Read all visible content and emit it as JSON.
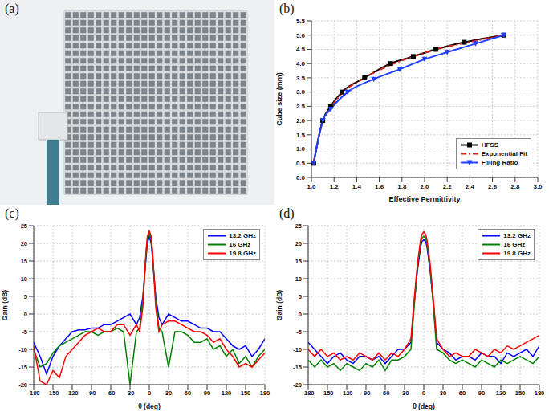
{
  "image_panel": {
    "panel_label": "(a)"
  },
  "chart_data": [
    {
      "panel_label": "(b)",
      "type": "line",
      "x_label": "Effective Permittivity",
      "y_label": "Cube size (mm)",
      "xlim": [
        1,
        3
      ],
      "xticks": [
        {
          "value": 1,
          "label": "1.0"
        },
        1.2,
        1.4,
        1.6,
        1.8,
        {
          "value": 2,
          "label": "2.0"
        },
        2.2,
        2.4,
        2.6,
        2.8,
        {
          "value": 3,
          "label": "3.0"
        }
      ],
      "ylim": [
        0,
        5.5
      ],
      "yticks": [
        {
          "value": 0,
          "label": "0.0"
        },
        0.5,
        {
          "value": 1,
          "label": "1.0"
        },
        1.5,
        {
          "value": 2,
          "label": "2.0"
        },
        2.5,
        {
          "value": 3,
          "label": "3.0"
        },
        3.5,
        {
          "value": 4,
          "label": "4.0"
        },
        4.5,
        {
          "value": 5,
          "label": "5.0"
        },
        5.5
      ],
      "grid": true,
      "legend": "lower right",
      "series": [
        {
          "name": "HFSS",
          "color": "#000000",
          "marker": "square",
          "line_style": "solid",
          "x": [
            1.02,
            1.1,
            1.17,
            1.27,
            1.47,
            1.7,
            1.9,
            2.1,
            2.35,
            2.7
          ],
          "values": [
            0.5,
            2.0,
            2.5,
            3.0,
            3.5,
            4.0,
            4.25,
            4.5,
            4.75,
            5.0
          ]
        },
        {
          "name": "Exponential Fit",
          "color": "#e0201b",
          "marker": "none",
          "line_style": "dashdot",
          "x": [
            1.02,
            1.1,
            1.17,
            1.27,
            1.47,
            1.7,
            1.9,
            2.1,
            2.35,
            2.7
          ],
          "values": [
            0.55,
            1.95,
            2.45,
            2.95,
            3.5,
            3.95,
            4.25,
            4.5,
            4.72,
            5.0
          ]
        },
        {
          "name": "Filling Ratio",
          "color": "#1f3fff",
          "marker": "triangle-down",
          "line_style": "solid",
          "x": [
            1.02,
            1.1,
            1.17,
            1.32,
            1.55,
            1.78,
            2.0,
            2.2,
            2.45,
            2.7
          ],
          "values": [
            0.5,
            2.0,
            2.4,
            3.0,
            3.45,
            3.8,
            4.15,
            4.4,
            4.7,
            5.0
          ]
        }
      ]
    },
    {
      "panel_label": "(c)",
      "type": "line",
      "x_label": "θ (deg)",
      "y_label": "Gain (dB)",
      "xlim": [
        -180,
        180
      ],
      "xticks": [
        -180,
        -150,
        -120,
        -90,
        -60,
        -30,
        0,
        30,
        60,
        90,
        120,
        150,
        180
      ],
      "ylim": [
        -20,
        25
      ],
      "yticks": [
        -20,
        -15,
        -10,
        -5,
        0,
        5,
        10,
        15,
        20,
        25
      ],
      "grid": true,
      "legend": "upper right",
      "x": [
        -180,
        -170,
        -160,
        -150,
        -140,
        -130,
        -120,
        -110,
        -100,
        -90,
        -80,
        -70,
        -60,
        -50,
        -40,
        -30,
        -20,
        -15,
        -10,
        -5,
        -3,
        0,
        3,
        5,
        10,
        15,
        20,
        30,
        40,
        50,
        60,
        70,
        80,
        90,
        100,
        110,
        120,
        130,
        140,
        150,
        160,
        170,
        180
      ],
      "series": [
        {
          "name": "13.2 GHz",
          "color": "#0000ff",
          "values": [
            -8,
            -12,
            -17,
            -12,
            -9,
            -7,
            -5,
            -4.5,
            -4.5,
            -4,
            -4,
            -3,
            -3,
            -2,
            -1,
            0,
            -3,
            -1,
            5,
            16,
            20,
            22,
            20,
            16,
            5,
            -1,
            -3,
            0,
            -1,
            -2,
            -2,
            -3,
            -4,
            -4,
            -5,
            -5,
            -7,
            -9,
            -10,
            -9,
            -12,
            -10,
            -7
          ]
        },
        {
          "name": "16 GHz",
          "color": "#008000",
          "values": [
            -10,
            -15,
            -14,
            -11,
            -9,
            -8,
            -7,
            -6,
            -5,
            -5,
            -6,
            -5,
            -5,
            -4,
            -5,
            -20,
            -5,
            -4,
            4,
            17,
            21,
            23,
            21,
            17,
            4,
            -4,
            -5,
            -15,
            -5,
            -5,
            -6,
            -8,
            -8,
            -7,
            -10,
            -9,
            -12,
            -10,
            -14,
            -12,
            -15,
            -12,
            -10
          ]
        },
        {
          "name": "19.8 GHz",
          "color": "#ff0000",
          "values": [
            -9,
            -19,
            -20,
            -16,
            -18,
            -12,
            -10,
            -8,
            -6,
            -5,
            -4,
            -5,
            -5,
            -3,
            -3,
            -6,
            -3,
            -5,
            2,
            18,
            22,
            23.5,
            22,
            18,
            2,
            -5,
            -3,
            -2,
            -2,
            -3,
            -4,
            -5,
            -5,
            -6,
            -8,
            -7,
            -10,
            -12,
            -15,
            -14,
            -15,
            -13,
            -11
          ]
        }
      ]
    },
    {
      "panel_label": "(d)",
      "type": "line",
      "x_label": "θ (deg)",
      "y_label": "Gain (dB)",
      "xlim": [
        -180,
        180
      ],
      "xticks": [
        -180,
        -150,
        -120,
        -90,
        -60,
        -30,
        0,
        30,
        60,
        90,
        120,
        150,
        180
      ],
      "ylim": [
        -20,
        25
      ],
      "yticks": [
        -20,
        -15,
        -10,
        -5,
        0,
        5,
        10,
        15,
        20,
        25
      ],
      "grid": true,
      "legend": "upper right",
      "x": [
        -180,
        -170,
        -160,
        -150,
        -140,
        -130,
        -120,
        -110,
        -100,
        -90,
        -80,
        -70,
        -60,
        -50,
        -40,
        -30,
        -20,
        -15,
        -10,
        -5,
        -3,
        0,
        3,
        5,
        10,
        15,
        20,
        30,
        40,
        50,
        60,
        70,
        80,
        90,
        100,
        110,
        120,
        130,
        140,
        150,
        160,
        170,
        180
      ],
      "series": [
        {
          "name": "13.2 GHz",
          "color": "#0000ff",
          "values": [
            -8,
            -10,
            -12,
            -14,
            -12,
            -11,
            -13,
            -14,
            -12,
            -12,
            -13,
            -12,
            -14,
            -12,
            -10,
            -10,
            -8,
            3,
            12,
            19,
            20.5,
            21,
            20.5,
            19,
            12,
            3,
            -8,
            -10,
            -11,
            -13,
            -12,
            -12,
            -13,
            -11,
            -12,
            -12,
            -14,
            -11,
            -12,
            -11,
            -10,
            -12,
            -9
          ]
        },
        {
          "name": "16 GHz",
          "color": "#008000",
          "values": [
            -13,
            -15,
            -13,
            -15,
            -14,
            -16,
            -14,
            -15,
            -16,
            -14,
            -15,
            -13,
            -16,
            -13,
            -13,
            -12,
            -10,
            2,
            13,
            20,
            21.5,
            22,
            21.5,
            20,
            13,
            2,
            -10,
            -11,
            -13,
            -14,
            -13,
            -14,
            -15,
            -13,
            -14,
            -15,
            -13,
            -14,
            -13,
            -12,
            -13,
            -14,
            -12
          ]
        },
        {
          "name": "19.8 GHz",
          "color": "#ff0000",
          "values": [
            -10,
            -12,
            -10,
            -12,
            -11,
            -13,
            -12,
            -13,
            -11,
            -12,
            -13,
            -11,
            -13,
            -11,
            -12,
            -10,
            -7,
            4,
            14,
            21,
            22.5,
            23.3,
            22.5,
            21,
            14,
            4,
            -7,
            -10,
            -12,
            -11,
            -12,
            -12,
            -10,
            -11,
            -12,
            -10,
            -11,
            -9,
            -10,
            -9,
            -8,
            -7,
            -6
          ]
        }
      ]
    }
  ]
}
